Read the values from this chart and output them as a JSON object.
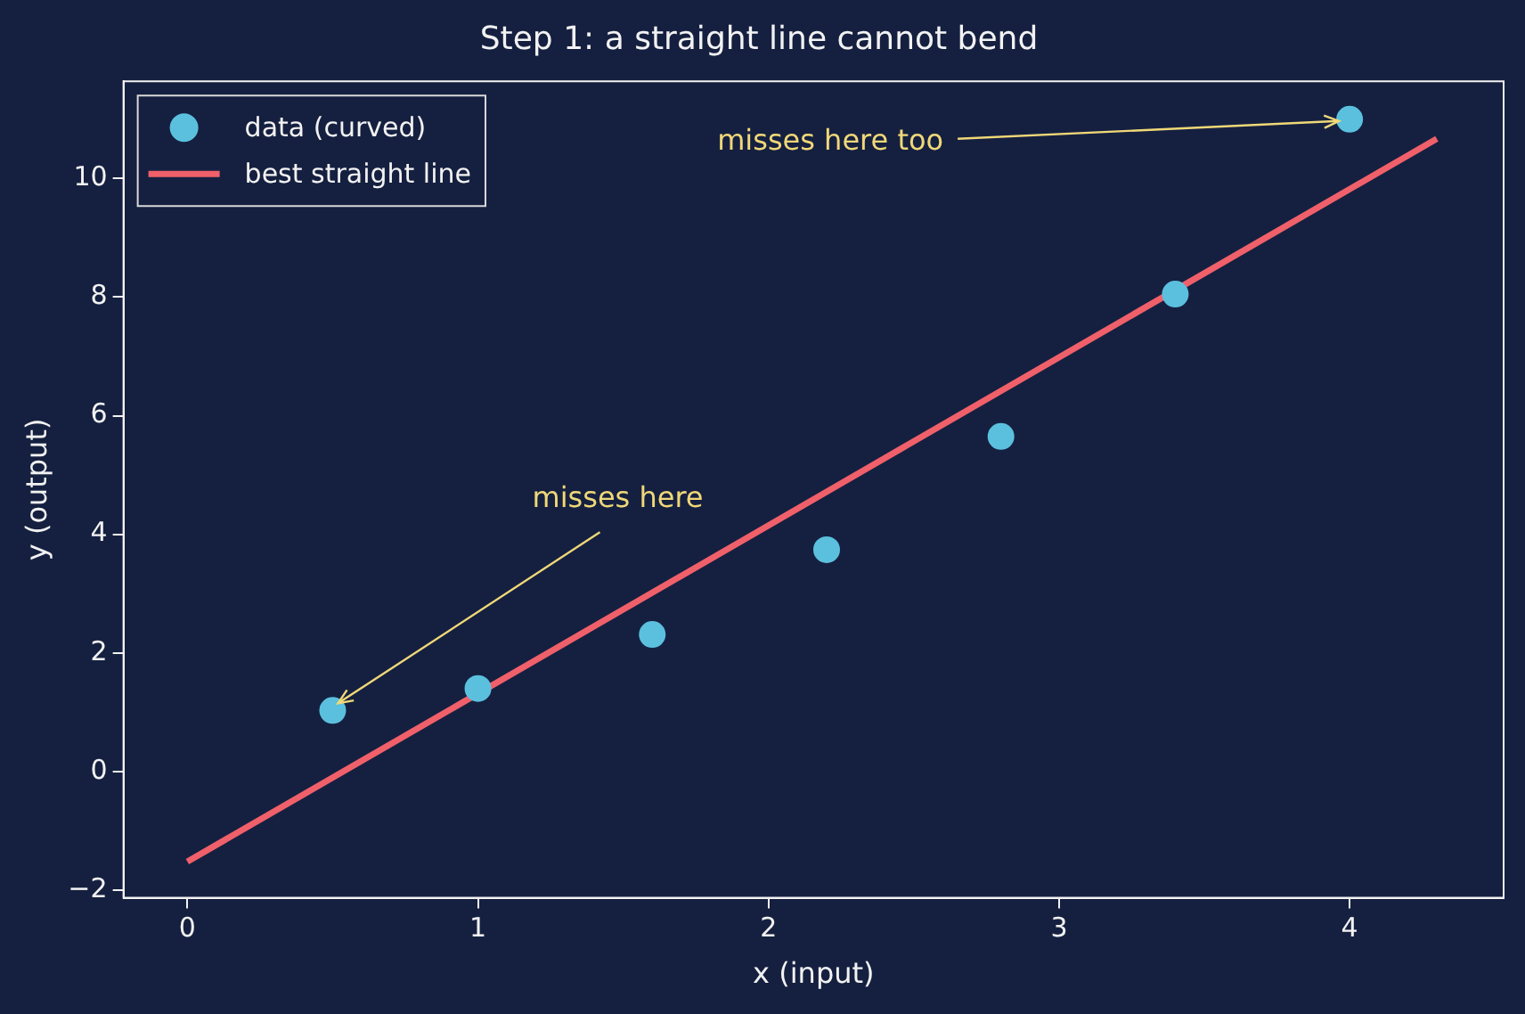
{
  "chart_data": {
    "type": "scatter",
    "title": "Step 1: a straight line cannot bend",
    "xlabel": "x (input)",
    "ylabel": "y (output)",
    "series": [
      {
        "name": "data (curved)",
        "color": "#5bc0de",
        "x": [
          0.5,
          1.0,
          1.6,
          2.2,
          2.8,
          3.4,
          4.0
        ],
        "values": [
          1.03,
          1.4,
          2.31,
          3.74,
          5.65,
          8.05,
          11.0
        ]
      },
      {
        "name": "best straight line",
        "type": "line",
        "color": "#f0606a",
        "x": [
          0,
          4.3
        ],
        "values": [
          -1.52,
          10.67
        ],
        "marker": "none",
        "line_style": "solid"
      }
    ],
    "annotations": [
      {
        "text": "misses here",
        "x": 0.5,
        "y": 1.03
      },
      {
        "text": "misses here too",
        "x": 4.0,
        "y": 11.0
      }
    ],
    "xlim": [
      -0.22,
      4.53
    ],
    "ylim": [
      -2.13,
      11.64
    ],
    "xticks": [
      0,
      1,
      2,
      3,
      4
    ],
    "yticks": [
      {
        "value": -2,
        "label": "−2"
      },
      0,
      2,
      4,
      6,
      8,
      10
    ],
    "grid": false,
    "legend": "top left",
    "marker": "circle"
  }
}
